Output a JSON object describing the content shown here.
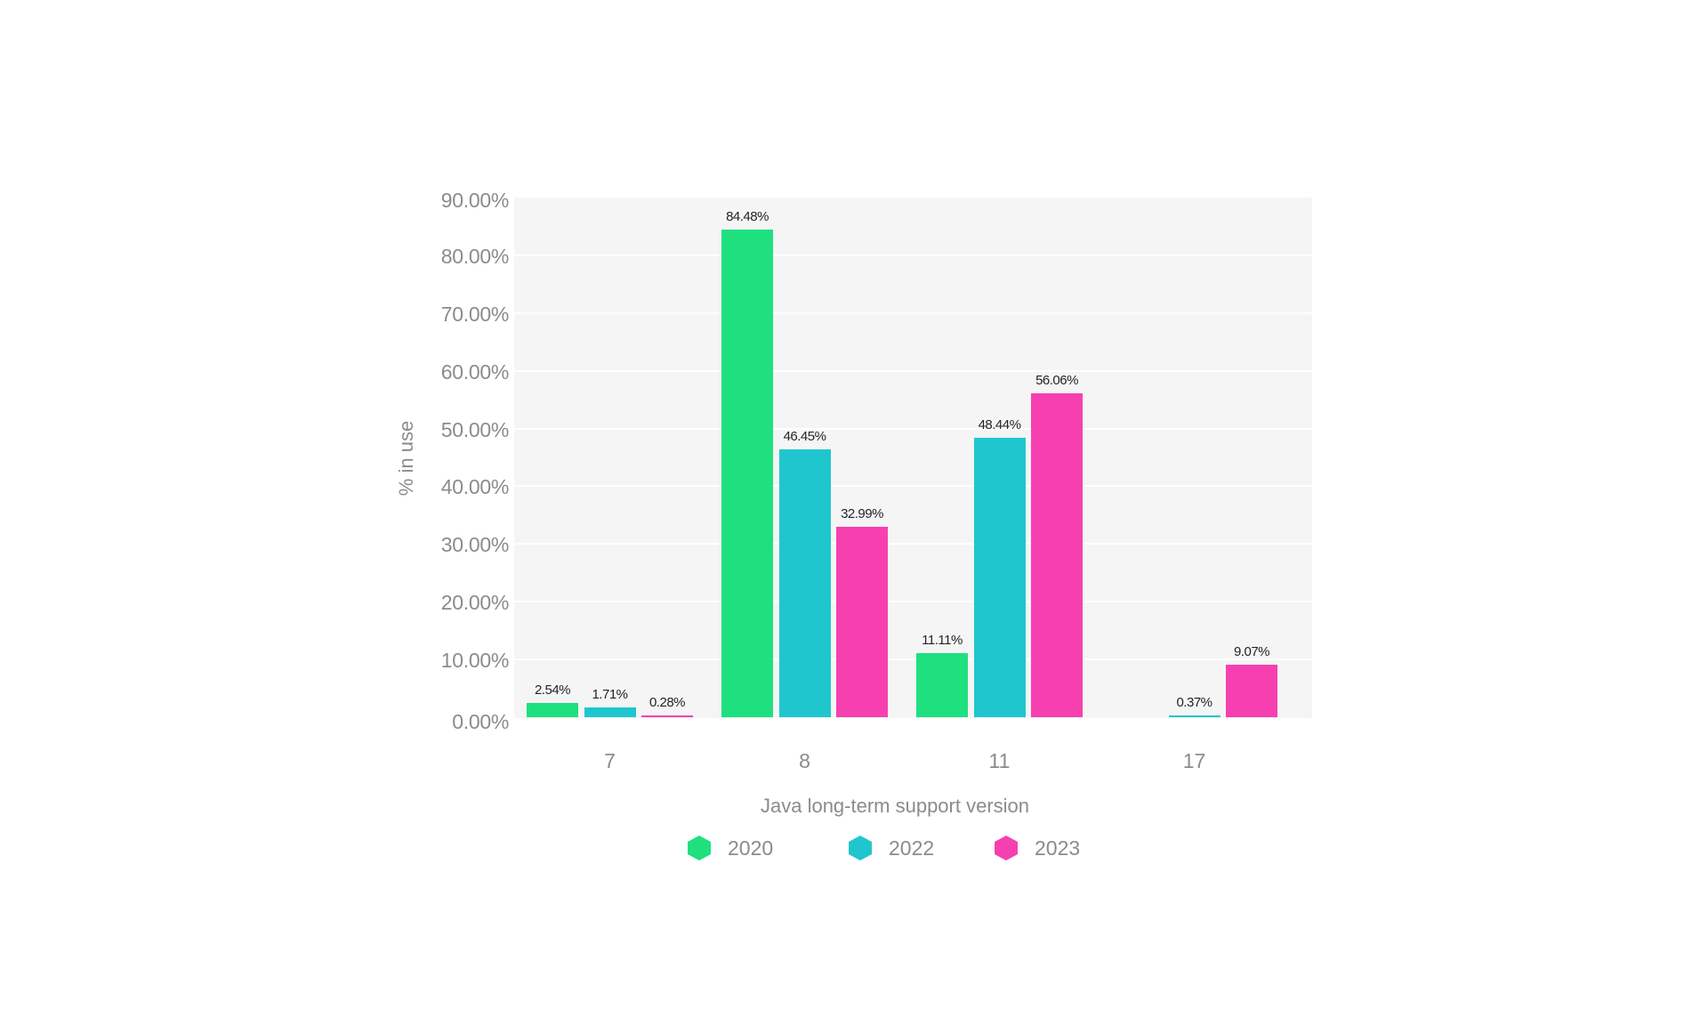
{
  "chart_data": {
    "type": "bar",
    "title": "",
    "xlabel": "Java long-term support version",
    "ylabel": "% in use",
    "categories": [
      "7",
      "8",
      "11",
      "17"
    ],
    "series": [
      {
        "name": "2020",
        "color": "#1ee07f",
        "values": [
          2.54,
          84.48,
          11.11,
          null
        ]
      },
      {
        "name": "2022",
        "color": "#1fc6ce",
        "values": [
          1.71,
          46.45,
          48.44,
          0.37
        ]
      },
      {
        "name": "2023",
        "color": "#f640b0",
        "values": [
          0.28,
          32.99,
          56.06,
          9.07
        ]
      }
    ],
    "data_labels": [
      [
        "2.54%",
        "1.71%",
        "0.28%"
      ],
      [
        "84.48%",
        "46.45%",
        "32.99%"
      ],
      [
        "11.11%",
        "48.44%",
        "56.06%"
      ],
      [
        null,
        "0.37%",
        "9.07%"
      ]
    ],
    "yticks": [
      "0.00%",
      "10.00%",
      "20.00%",
      "30.00%",
      "40.00%",
      "50.00%",
      "60.00%",
      "70.00%",
      "80.00%",
      "90.00%"
    ],
    "ylim": [
      0,
      90
    ],
    "grid": true,
    "legend_position": "bottom"
  },
  "legend": [
    {
      "label": "2020",
      "color": "#1ee07f"
    },
    {
      "label": "2022",
      "color": "#1fc6ce"
    },
    {
      "label": "2023",
      "color": "#f640b0"
    }
  ],
  "colors": {
    "plot_background": "#f5f5f5",
    "axis_text": "#8b8b8f",
    "data_label_text": "#23232b"
  }
}
